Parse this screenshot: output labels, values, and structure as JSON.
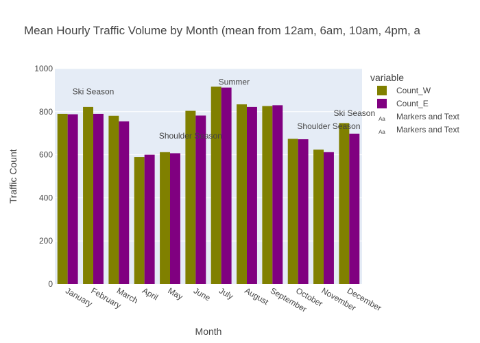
{
  "chart_data": {
    "type": "bar",
    "title": "Mean Hourly Traffic Volume by Month (mean from 12am, 6am, 10am, 4pm, a",
    "xlabel": "Month",
    "ylabel": "Traffic Count",
    "ylim": [
      0,
      1000
    ],
    "yticks": [
      "0",
      "200",
      "400",
      "600",
      "800",
      "1000"
    ],
    "grid": true,
    "legend_position": "right",
    "legend_title": "variable",
    "categories": [
      "January",
      "February",
      "March",
      "April",
      "May",
      "June",
      "July",
      "August",
      "September",
      "October",
      "November",
      "December"
    ],
    "series": [
      {
        "name": "Count_W",
        "color": "#808000",
        "values": [
          790,
          822,
          781,
          589,
          612,
          804,
          916,
          834,
          826,
          674,
          624,
          747
        ]
      },
      {
        "name": "Count_E",
        "color": "#800080",
        "values": [
          788,
          790,
          755,
          600,
          607,
          782,
          912,
          822,
          830,
          672,
          612,
          698
        ]
      }
    ],
    "legend_extra": [
      "Markers and Text",
      "Markers and Text"
    ],
    "legend_extra_icon": "Aa",
    "annotations": [
      {
        "text": "Ski Season",
        "x_index": 1,
        "y": 880
      },
      {
        "text": "Shoulder Season",
        "x_index": 4.8,
        "y": 675
      },
      {
        "text": "Summer",
        "x_index": 6.5,
        "y": 925
      },
      {
        "text": "Shoulder Season",
        "x_index": 10.2,
        "y": 720
      },
      {
        "text": "Ski Season",
        "x_index": 11.2,
        "y": 780
      }
    ]
  }
}
